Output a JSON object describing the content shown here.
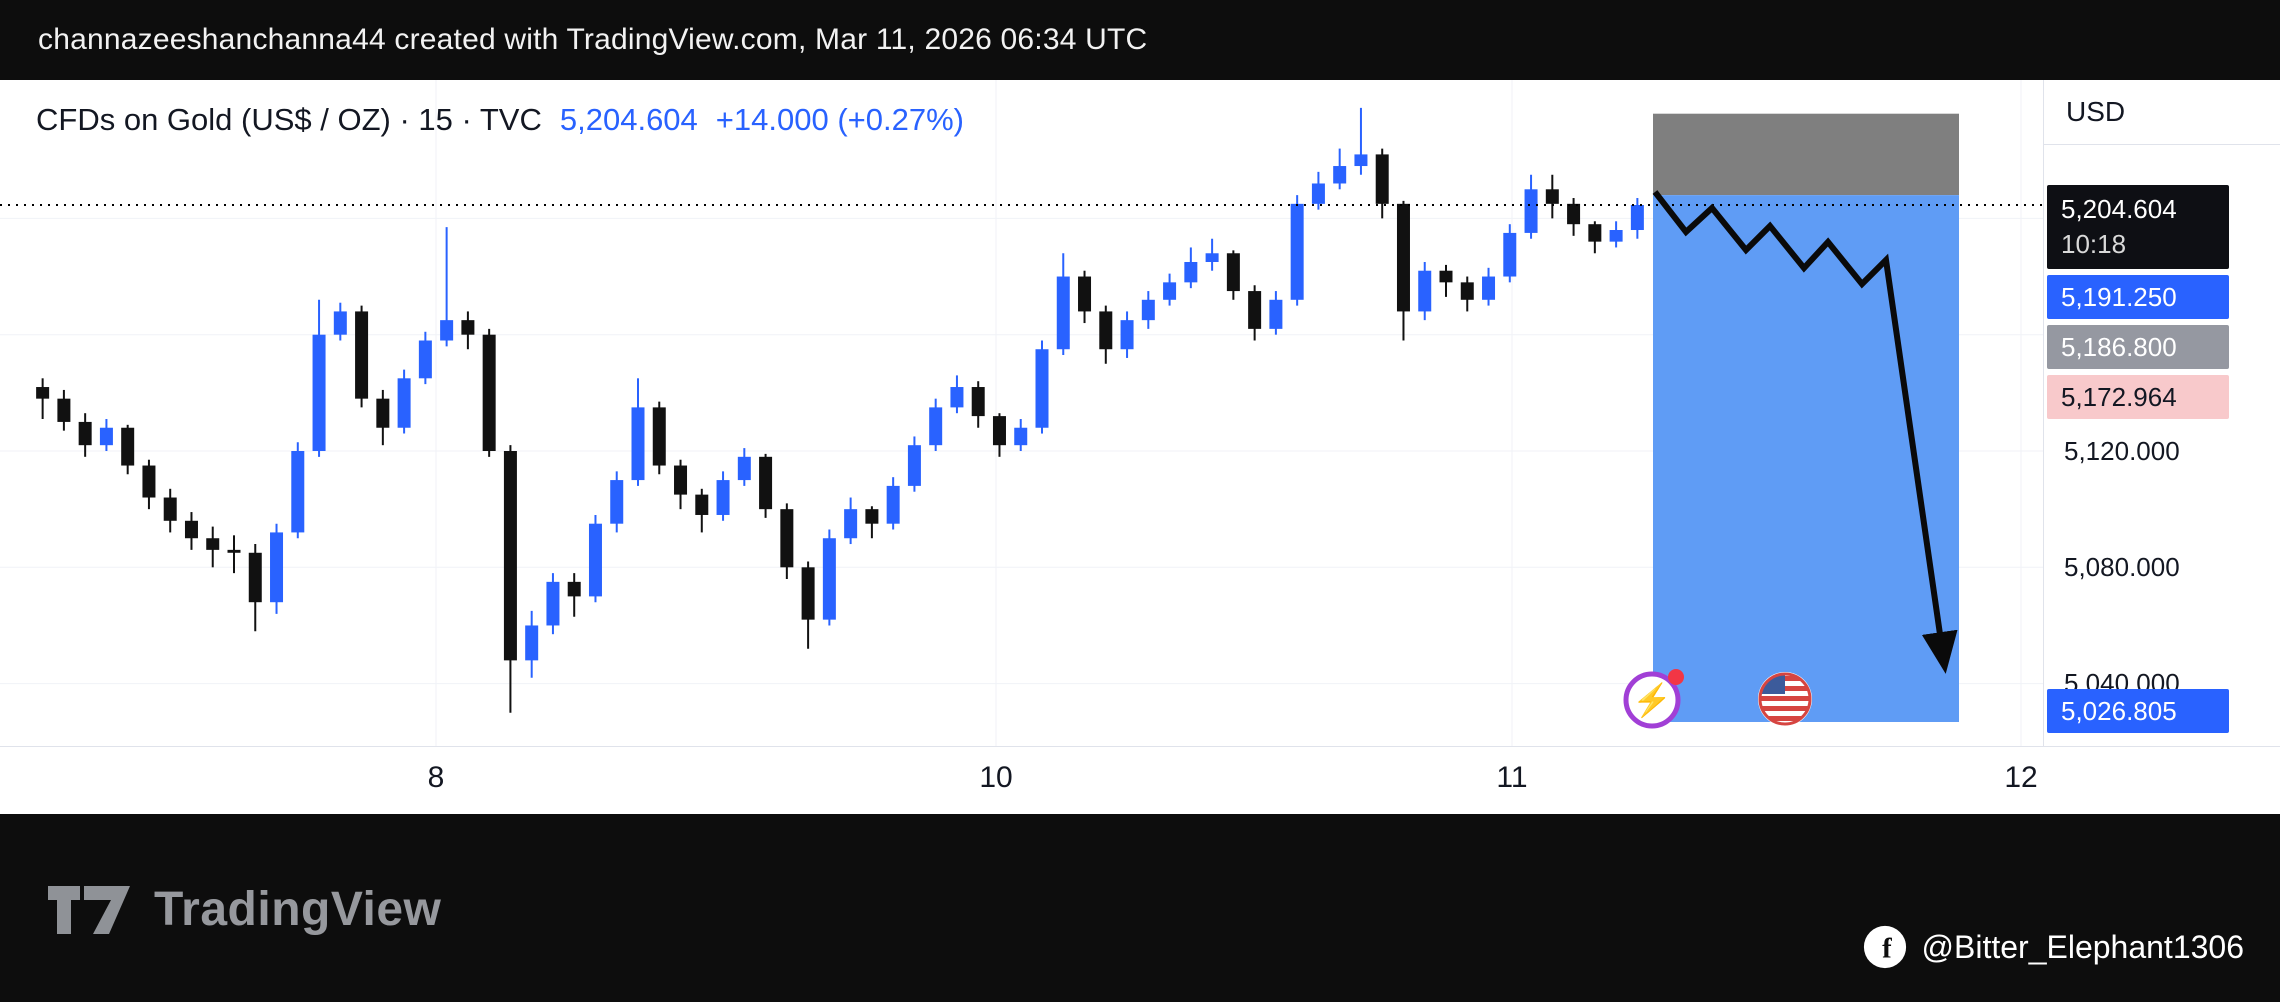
{
  "top_bar": {
    "text": "channazeeshanchanna44 created with TradingView.com, Mar 11, 2026 06:34 UTC"
  },
  "chart": {
    "title": "CFDs on Gold (US$ / OZ) · 15 · TVC",
    "last_price": "5,204.604",
    "change": "+14.000 (+0.27%)",
    "axis": {
      "currency": "USD",
      "last_badge": {
        "price": "5,204.604",
        "countdown": "10:18"
      },
      "blue_badge_high": "5,191.250",
      "gray_badge": "5,186.800",
      "pink_badge": "5,172.964",
      "blue_badge_low": "5,026.805",
      "grid_labels": [
        "5,120.000",
        "5,080.000",
        "5,040.000"
      ]
    },
    "time_labels": [
      "8",
      "10",
      "11",
      "12"
    ]
  },
  "chart_data": {
    "type": "candlestick",
    "title": "CFDs on Gold (US$ / OZ) · 15 · TVC",
    "timeframe_minutes": 15,
    "current_price": 5204.604,
    "ylim": [
      5020,
      5240
    ],
    "y_ticks": [
      5120,
      5080,
      5040
    ],
    "h_gridlines": [
      5200,
      5160,
      5120,
      5080,
      5040
    ],
    "x_axis_labels": [
      "8",
      "10",
      "11",
      "12"
    ],
    "legend_position": "none",
    "grid": true,
    "colors": {
      "up": "#2962FF",
      "down": "#111111",
      "projection_gray": "#7f7f7f",
      "projection_blue": "#5f9cf5",
      "accent_blue": "#2962FF",
      "badge_pink": "#F8C9CB",
      "badge_gray": "#9598A1"
    },
    "projection": {
      "gray_zone": [
        5208,
        5236
      ],
      "blue_zone": [
        5026.805,
        5208
      ],
      "arrow": "down"
    },
    "candles": {
      "open": [
        5142,
        5138,
        5130,
        5122,
        5128,
        5115,
        5104,
        5096,
        5090,
        5086,
        5085,
        5068,
        5092,
        5120,
        5160,
        5168,
        5138,
        5128,
        5145,
        5158,
        5165,
        5160,
        5120,
        5048,
        5060,
        5075,
        5070,
        5095,
        5110,
        5135,
        5115,
        5105,
        5098,
        5110,
        5118,
        5100,
        5080,
        5062,
        5090,
        5100,
        5095,
        5108,
        5122,
        5135,
        5142,
        5132,
        5122,
        5128,
        5155,
        5180,
        5168,
        5155,
        5165,
        5172,
        5178,
        5185,
        5188,
        5175,
        5162,
        5172,
        5205,
        5212,
        5218,
        5222,
        5205,
        5168,
        5182,
        5178,
        5172,
        5180,
        5195,
        5210,
        5205,
        5198,
        5192,
        5196
      ],
      "high": [
        5145,
        5141,
        5133,
        5131,
        5129,
        5117,
        5107,
        5099,
        5094,
        5091,
        5088,
        5095,
        5123,
        5172,
        5171,
        5170,
        5141,
        5148,
        5161,
        5197,
        5168,
        5162,
        5122,
        5065,
        5078,
        5078,
        5098,
        5113,
        5145,
        5137,
        5117,
        5107,
        5113,
        5121,
        5119,
        5102,
        5082,
        5093,
        5104,
        5101,
        5111,
        5125,
        5138,
        5146,
        5144,
        5133,
        5131,
        5158,
        5188,
        5182,
        5170,
        5168,
        5175,
        5181,
        5190,
        5193,
        5189,
        5177,
        5175,
        5208,
        5216,
        5224,
        5238,
        5224,
        5206,
        5185,
        5184,
        5180,
        5183,
        5198,
        5215,
        5215,
        5207,
        5199,
        5199,
        5207
      ],
      "low": [
        5131,
        5127,
        5118,
        5120,
        5112,
        5100,
        5092,
        5086,
        5080,
        5078,
        5058,
        5064,
        5090,
        5118,
        5158,
        5135,
        5122,
        5126,
        5143,
        5156,
        5155,
        5118,
        5030,
        5042,
        5057,
        5063,
        5068,
        5092,
        5108,
        5112,
        5100,
        5092,
        5096,
        5108,
        5097,
        5076,
        5052,
        5060,
        5088,
        5090,
        5093,
        5106,
        5120,
        5133,
        5128,
        5118,
        5120,
        5126,
        5153,
        5164,
        5150,
        5152,
        5162,
        5170,
        5176,
        5182,
        5172,
        5158,
        5160,
        5170,
        5203,
        5210,
        5215,
        5200,
        5158,
        5165,
        5173,
        5168,
        5170,
        5178,
        5193,
        5200,
        5194,
        5188,
        5190,
        5193
      ],
      "close": [
        5138,
        5130,
        5122,
        5128,
        5115,
        5104,
        5096,
        5090,
        5086,
        5085,
        5068,
        5092,
        5120,
        5160,
        5168,
        5138,
        5128,
        5145,
        5158,
        5165,
        5160,
        5120,
        5048,
        5060,
        5075,
        5070,
        5095,
        5110,
        5135,
        5115,
        5105,
        5098,
        5110,
        5118,
        5100,
        5080,
        5062,
        5090,
        5100,
        5095,
        5108,
        5122,
        5135,
        5142,
        5132,
        5122,
        5128,
        5155,
        5180,
        5168,
        5155,
        5165,
        5172,
        5178,
        5185,
        5188,
        5175,
        5162,
        5172,
        5205,
        5212,
        5218,
        5222,
        5205,
        5168,
        5182,
        5178,
        5172,
        5180,
        5195,
        5210,
        5205,
        5198,
        5192,
        5196,
        5204.6
      ]
    }
  },
  "footer": {
    "brand": "TradingView",
    "handle": "@Bitter_Elephant1306"
  }
}
